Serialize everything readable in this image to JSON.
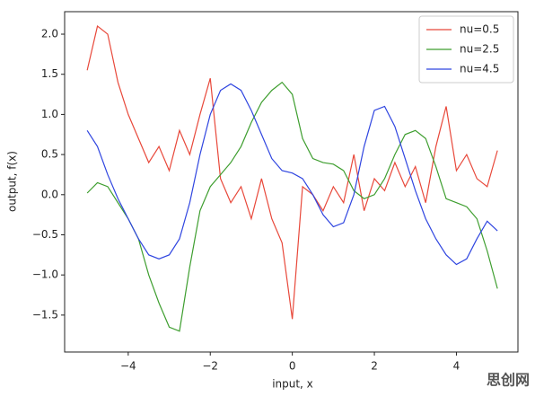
{
  "chart_data": {
    "type": "line",
    "x_label": "input, x",
    "y_label": "output, f(x)",
    "x": [
      -5,
      -4.75,
      -4.5,
      -4.25,
      -4,
      -3.75,
      -3.5,
      -3.25,
      -3,
      -2.75,
      -2.5,
      -2.25,
      -2,
      -1.75,
      -1.5,
      -1.25,
      -1,
      -0.75,
      -0.5,
      -0.25,
      0,
      0.25,
      0.5,
      0.75,
      1,
      1.25,
      1.5,
      1.75,
      2,
      2.25,
      2.5,
      2.75,
      3,
      3.25,
      3.5,
      3.75,
      4,
      4.25,
      4.5,
      4.75,
      5
    ],
    "series": [
      {
        "name": "nu=0.5",
        "color": "#e8483a",
        "values": [
          1.55,
          2.1,
          2.0,
          1.4,
          1.0,
          0.7,
          0.4,
          0.6,
          0.3,
          0.8,
          0.5,
          1.0,
          1.45,
          0.2,
          -0.1,
          0.1,
          -0.3,
          0.2,
          -0.3,
          -0.6,
          -1.55,
          0.1,
          0.0,
          -0.2,
          0.1,
          -0.1,
          0.5,
          -0.2,
          0.2,
          0.05,
          0.4,
          0.1,
          0.35,
          -0.1,
          0.6,
          1.1,
          0.3,
          0.5,
          0.2,
          0.1,
          0.55
        ]
      },
      {
        "name": "nu=2.5",
        "color": "#3e9e2f",
        "values": [
          0.02,
          0.15,
          0.1,
          -0.1,
          -0.3,
          -0.55,
          -1.0,
          -1.35,
          -1.65,
          -1.7,
          -0.9,
          -0.2,
          0.1,
          0.25,
          0.4,
          0.6,
          0.9,
          1.15,
          1.3,
          1.4,
          1.25,
          0.7,
          0.45,
          0.4,
          0.38,
          0.3,
          0.05,
          -0.05,
          0.0,
          0.2,
          0.5,
          0.75,
          0.8,
          0.7,
          0.35,
          -0.05,
          -0.1,
          -0.15,
          -0.3,
          -0.7,
          -1.17
        ]
      },
      {
        "name": "nu=4.5",
        "color": "#2f45e0",
        "values": [
          0.8,
          0.6,
          0.25,
          -0.05,
          -0.3,
          -0.55,
          -0.75,
          -0.8,
          -0.75,
          -0.55,
          -0.1,
          0.5,
          1.0,
          1.3,
          1.38,
          1.3,
          1.05,
          0.75,
          0.45,
          0.3,
          0.27,
          0.2,
          0.0,
          -0.25,
          -0.4,
          -0.35,
          0.0,
          0.6,
          1.05,
          1.1,
          0.85,
          0.45,
          0.05,
          -0.3,
          -0.55,
          -0.75,
          -0.87,
          -0.8,
          -0.55,
          -0.33,
          -0.45
        ]
      }
    ],
    "xlim": [
      -5.55,
      5.5
    ],
    "ylim": [
      -1.96,
      2.28
    ],
    "xticks": [
      {
        "value": -4,
        "label": "−4"
      },
      {
        "value": -2,
        "label": "−2"
      },
      {
        "value": 0,
        "label": "0"
      },
      {
        "value": 2,
        "label": "2"
      },
      {
        "value": 4,
        "label": "4"
      }
    ],
    "yticks": [
      {
        "value": -1.5,
        "label": "−1.5"
      },
      {
        "value": -1,
        "label": "−1.0"
      },
      {
        "value": -0.5,
        "label": "−0.5"
      },
      {
        "value": 0,
        "label": "0.0"
      },
      0.5,
      {
        "value": 1,
        "label": "1.0"
      },
      1.5,
      {
        "value": 2,
        "label": "2.0"
      }
    ],
    "legend": "upper right",
    "grid": false
  },
  "watermark": "思创网"
}
